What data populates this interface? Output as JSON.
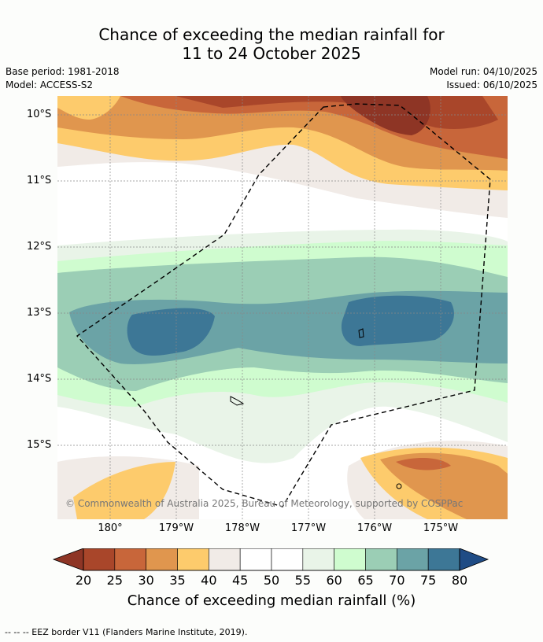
{
  "title": {
    "line1": "Chance of exceeding the median rainfall for",
    "line2": "11 to 24 October 2025"
  },
  "meta": {
    "base_period": "Base period: 1981-2018",
    "model": "Model: ACCESS-S2",
    "model_run": "Model run: 04/10/2025",
    "issued": "Issued: 06/10/2025"
  },
  "latitude_labels": [
    "10°S",
    "11°S",
    "12°S",
    "13°S",
    "14°S",
    "15°S"
  ],
  "longitude_labels": [
    "180°",
    "179°W",
    "178°W",
    "177°W",
    "176°W",
    "175°W"
  ],
  "copyright": "© Commonwealth of Australia 2025, Bureau of Meteorology, supported by COSPPac",
  "colorbar": {
    "ticks": [
      "20",
      "25",
      "30",
      "35",
      "40",
      "45",
      "50",
      "55",
      "60",
      "65",
      "70",
      "75",
      "80"
    ],
    "colors": [
      "#a9462a",
      "#c8663a",
      "#e0964e",
      "#fdcb6c",
      "#f1ebe7",
      "#ffffff",
      "#ffffff",
      "#e9f4e8",
      "#cffccf",
      "#9bceb5",
      "#6ba3a6",
      "#3d7796"
    ],
    "under_color": "#8e3525",
    "over_color": "#1f4c85",
    "title": "Chance of exceeding median rainfall (%)"
  },
  "footer": "-- -- -- EEZ border V11 (Flanders Marine Institute, 2019)."
}
